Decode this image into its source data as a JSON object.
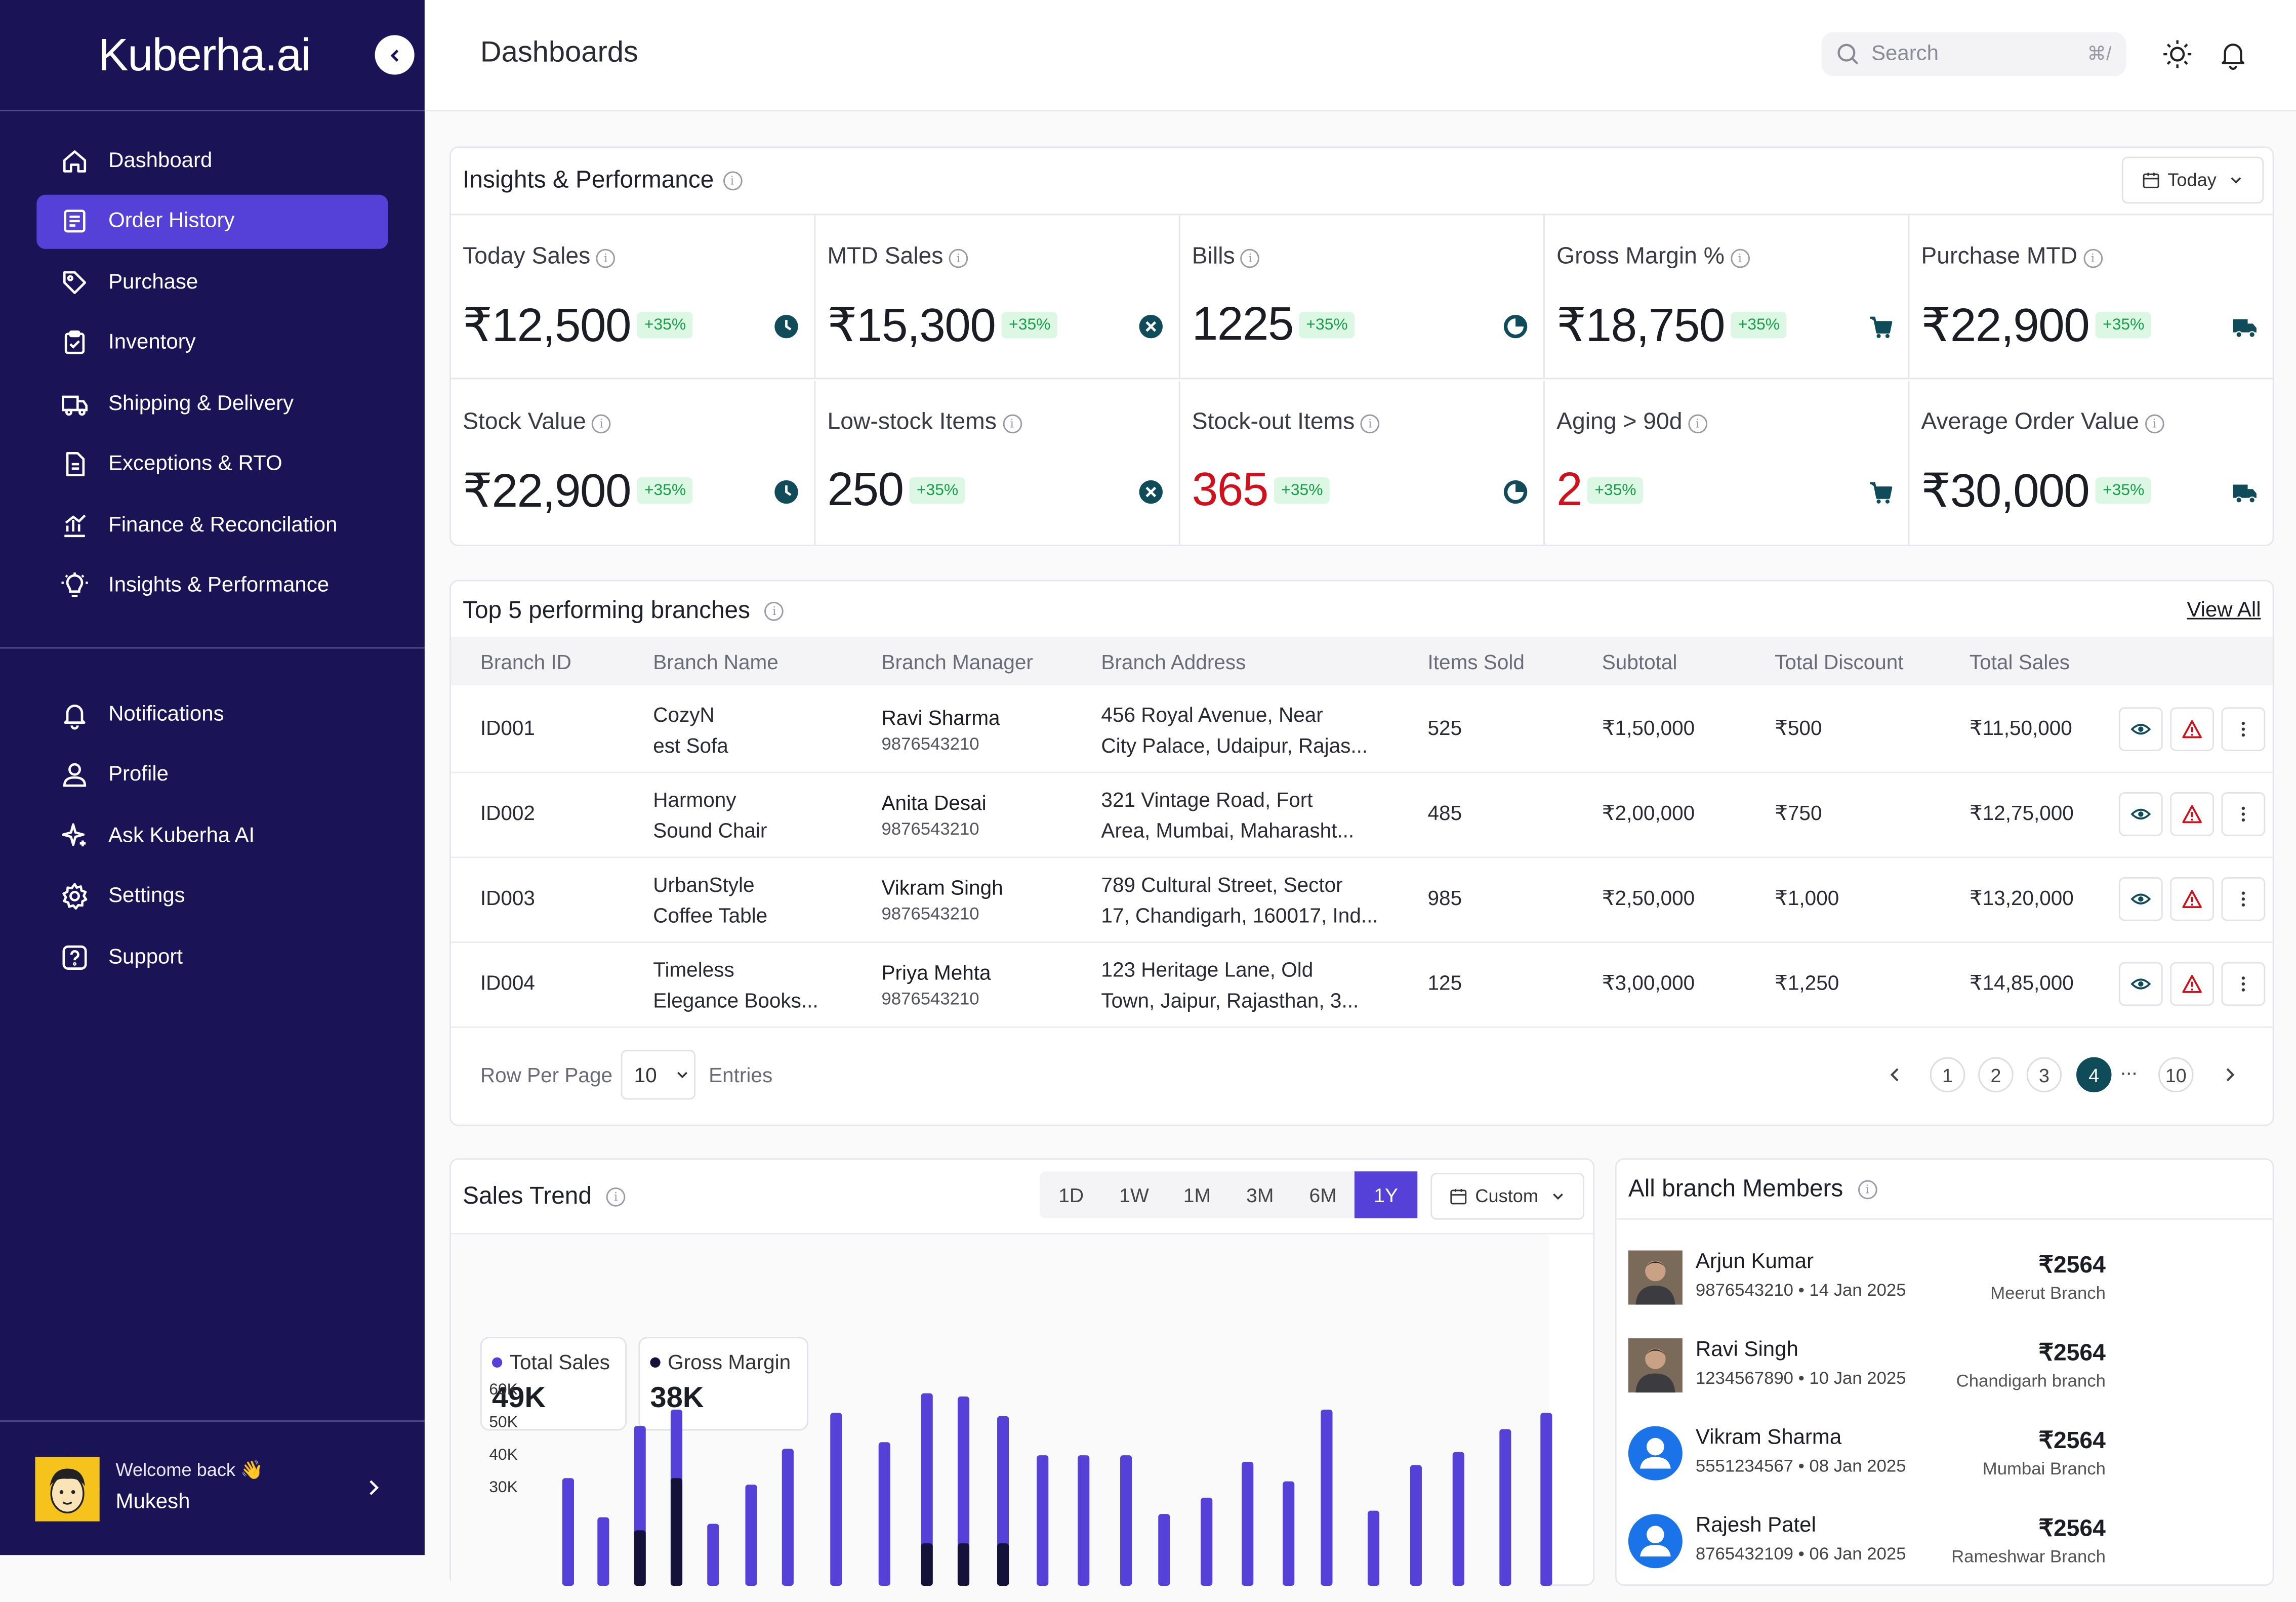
{
  "brand": "Kuberha.ai",
  "header": {
    "title": "Dashboards",
    "search_placeholder": "Search",
    "search_shortcut": "⌘/"
  },
  "sidebar": {
    "items": [
      {
        "label": "Dashboard",
        "icon": "home-icon"
      },
      {
        "label": "Order History",
        "icon": "receipt-icon",
        "active": true
      },
      {
        "label": "Purchase",
        "icon": "tag-icon"
      },
      {
        "label": "Inventory",
        "icon": "clipboard-icon"
      },
      {
        "label": "Shipping & Delivery",
        "icon": "truck-icon"
      },
      {
        "label": "Exceptions & RTO",
        "icon": "document-icon"
      },
      {
        "label": "Finance & Reconcilation",
        "icon": "chart-icon"
      },
      {
        "label": "Insights & Performance",
        "icon": "bulb-icon"
      }
    ],
    "secondary": [
      {
        "label": "Notifications",
        "icon": "bell-icon"
      },
      {
        "label": "Profile",
        "icon": "user-icon"
      },
      {
        "label": "Ask Kuberha AI",
        "icon": "sparkle-icon"
      },
      {
        "label": "Settings",
        "icon": "gear-icon"
      },
      {
        "label": "Support",
        "icon": "help-icon"
      }
    ],
    "user": {
      "welcome": "Welcome back 👋",
      "name": "Mukesh"
    }
  },
  "insights": {
    "title": "Insights & Performance",
    "range": "Today",
    "metrics": [
      {
        "label": "Today Sales",
        "value": "₹12,500",
        "badge": "+35%",
        "icon": "clock-icon",
        "red": false
      },
      {
        "label": "MTD Sales",
        "value": "₹15,300",
        "badge": "+35%",
        "icon": "x-circle-icon",
        "red": false
      },
      {
        "label": "Bills",
        "value": "1225",
        "badge": "+35%",
        "icon": "pie-icon",
        "red": false
      },
      {
        "label": "Gross Margin %",
        "value": "₹18,750",
        "badge": "+35%",
        "icon": "cart-icon",
        "red": false
      },
      {
        "label": "Purchase MTD",
        "value": "₹22,900",
        "badge": "+35%",
        "icon": "truck-icon",
        "red": false
      },
      {
        "label": "Stock Value",
        "value": "₹22,900",
        "badge": "+35%",
        "icon": "clock-icon",
        "red": false
      },
      {
        "label": "Low-stock Items",
        "value": "250",
        "badge": "+35%",
        "icon": "x-circle-icon",
        "red": false
      },
      {
        "label": "Stock-out Items",
        "value": "365",
        "badge": "+35%",
        "icon": "pie-icon",
        "red": true
      },
      {
        "label": "Aging > 90d",
        "value": "2",
        "badge": "+35%",
        "icon": "cart-icon",
        "red": true
      },
      {
        "label": "Average Order Value",
        "value": "₹30,000",
        "badge": "+35%",
        "icon": "truck-icon",
        "red": false
      }
    ]
  },
  "branches": {
    "title": "Top 5 performing branches",
    "view_all": "View All",
    "columns": [
      "Branch ID",
      "Branch Name",
      "Branch Manager",
      "Branch Address",
      "Items Sold",
      "Subtotal",
      "Total Discount",
      "Total Sales"
    ],
    "rows": [
      {
        "id": "ID001",
        "name1": "CozyN",
        "name2": "est Sofa",
        "manager": "Ravi Sharma",
        "phone": "9876543210",
        "addr1": "456 Royal Avenue, Near",
        "addr2": "City Palace, Udaipur, Rajas...",
        "items": "525",
        "subtotal": "₹1,50,000",
        "discount": "₹500",
        "total": "₹11,50,000"
      },
      {
        "id": "ID002",
        "name1": "Harmony",
        "name2": "Sound Chair",
        "manager": "Anita Desai",
        "phone": "9876543210",
        "addr1": "321 Vintage Road, Fort",
        "addr2": "Area, Mumbai, Maharasht...",
        "items": "485",
        "subtotal": "₹2,00,000",
        "discount": "₹750",
        "total": "₹12,75,000"
      },
      {
        "id": "ID003",
        "name1": "UrbanStyle",
        "name2": "Coffee Table",
        "manager": "Vikram Singh",
        "phone": "9876543210",
        "addr1": "789 Cultural Street, Sector",
        "addr2": "17, Chandigarh, 160017, Ind...",
        "items": "985",
        "subtotal": "₹2,50,000",
        "discount": "₹1,000",
        "total": "₹13,20,000"
      },
      {
        "id": "ID004",
        "name1": "Timeless",
        "name2": "Elegance Books...",
        "manager": "Priya Mehta",
        "phone": "9876543210",
        "addr1": "123 Heritage Lane, Old",
        "addr2": "Town, Jaipur, Rajasthan, 3...",
        "items": "125",
        "subtotal": "₹3,00,000",
        "discount": "₹1,250",
        "total": "₹14,85,000"
      }
    ],
    "footer": {
      "row_per_page": "Row Per Page",
      "page_size": "10",
      "entries": "Entries",
      "pages": [
        "1",
        "2",
        "3",
        "4",
        "...",
        "10"
      ],
      "current_page": "4"
    }
  },
  "trend": {
    "title": "Sales Trend",
    "ranges": [
      "1D",
      "1W",
      "1M",
      "3M",
      "6M",
      "1Y"
    ],
    "active_range": "1Y",
    "custom": "Custom",
    "legend": [
      {
        "name": "Total Sales",
        "value": "49K",
        "color": "#5540d8"
      },
      {
        "name": "Gross Margin",
        "value": "38K",
        "color": "#15123a"
      }
    ]
  },
  "chart_data": {
    "type": "bar",
    "series": [
      {
        "name": "Total Sales",
        "values": [
          33,
          21,
          49,
          54,
          19,
          31,
          42,
          53,
          44,
          59,
          58,
          52,
          40,
          40,
          40,
          22,
          27,
          38,
          32,
          54,
          23,
          37,
          41,
          48,
          53
        ]
      },
      {
        "name": "Gross Margin",
        "values": [
          0,
          0,
          17,
          33,
          0,
          0,
          0,
          0,
          0,
          13,
          13,
          13,
          0,
          0,
          0,
          0,
          0,
          0,
          0,
          0,
          0,
          0,
          0,
          0,
          0
        ]
      }
    ],
    "ytick_labels": [
      "60K",
      "50K",
      "40K",
      "30K"
    ],
    "ylim": [
      0,
      70
    ]
  },
  "members": {
    "title": "All branch Members",
    "list": [
      {
        "name": "Arjun Kumar",
        "sub": "9876543210 • 14 Jan 2025",
        "amount": "₹2564",
        "branch": "Meerut Branch",
        "avatar": "photo"
      },
      {
        "name": "Ravi Singh",
        "sub": "1234567890 • 10 Jan 2025",
        "amount": "₹2564",
        "branch": "Chandigarh branch",
        "avatar": "photo"
      },
      {
        "name": "Vikram Sharma",
        "sub": "5551234567 • 08 Jan 2025",
        "amount": "₹2564",
        "branch": "Mumbai Branch",
        "avatar": "default"
      },
      {
        "name": "Rajesh Patel",
        "sub": "8765432109 • 06 Jan 2025",
        "amount": "₹2564",
        "branch": "Rameshwar Branch",
        "avatar": "default"
      }
    ]
  },
  "colors": {
    "sidebar": "#1a1457",
    "accent": "#5540d8",
    "teal": "#0f4b58",
    "badge_green": "#1b9e4a",
    "red": "#d0111b"
  }
}
